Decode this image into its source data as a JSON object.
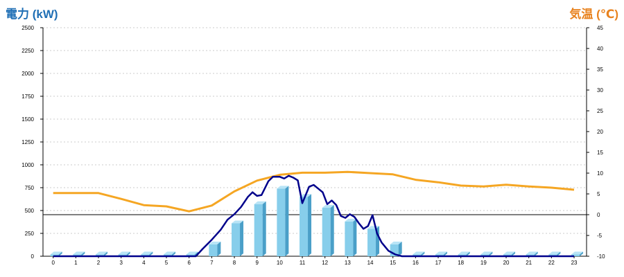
{
  "chart_data": {
    "type": "bar+line",
    "left_title": "電力 (kW)",
    "right_title": "気温 (℃)",
    "categories": [
      "0",
      "1",
      "2",
      "3",
      "4",
      "5",
      "6",
      "7",
      "8",
      "9",
      "10",
      "11",
      "12",
      "13",
      "14",
      "15",
      "16",
      "17",
      "18",
      "19",
      "20",
      "21",
      "22",
      "23"
    ],
    "left_axis": {
      "ticks": [
        "0",
        "250",
        "500",
        "750",
        "1000",
        "1250",
        "1500",
        "1750",
        "2000",
        "2250",
        "2500"
      ],
      "ylim": [
        0,
        2500
      ]
    },
    "right_axis": {
      "ticks": [
        "-10",
        "-5",
        "0",
        "5",
        "10",
        "15",
        "20",
        "25",
        "30",
        "35",
        "40",
        "45"
      ],
      "ylim": [
        -10,
        45
      ]
    },
    "bars": [
      20,
      20,
      20,
      20,
      20,
      20,
      20,
      130,
      360,
      570,
      740,
      650,
      530,
      380,
      300,
      130,
      20,
      20,
      20,
      20,
      20,
      20,
      20,
      20
    ],
    "power_line": [
      [
        0,
        0
      ],
      [
        1,
        0
      ],
      [
        2,
        0
      ],
      [
        3,
        0
      ],
      [
        4,
        0
      ],
      [
        5,
        0
      ],
      [
        6,
        0
      ],
      [
        6.3,
        0
      ],
      [
        6.6,
        80
      ],
      [
        7,
        180
      ],
      [
        7.4,
        290
      ],
      [
        7.7,
        400
      ],
      [
        8,
        460
      ],
      [
        8.3,
        540
      ],
      [
        8.6,
        650
      ],
      [
        8.8,
        700
      ],
      [
        9.0,
        660
      ],
      [
        9.2,
        670
      ],
      [
        9.5,
        820
      ],
      [
        9.7,
        870
      ],
      [
        10,
        870
      ],
      [
        10.2,
        850
      ],
      [
        10.4,
        880
      ],
      [
        10.6,
        860
      ],
      [
        10.8,
        830
      ],
      [
        11.0,
        580
      ],
      [
        11.1,
        640
      ],
      [
        11.3,
        760
      ],
      [
        11.5,
        780
      ],
      [
        11.7,
        740
      ],
      [
        11.9,
        700
      ],
      [
        12.1,
        570
      ],
      [
        12.3,
        610
      ],
      [
        12.5,
        560
      ],
      [
        12.7,
        440
      ],
      [
        12.9,
        420
      ],
      [
        13.1,
        460
      ],
      [
        13.3,
        430
      ],
      [
        13.5,
        360
      ],
      [
        13.7,
        300
      ],
      [
        13.9,
        330
      ],
      [
        14.1,
        450
      ],
      [
        14.3,
        250
      ],
      [
        14.5,
        150
      ],
      [
        14.8,
        60
      ],
      [
        15.1,
        20
      ],
      [
        15.4,
        0
      ],
      [
        16,
        0
      ],
      [
        17,
        0
      ],
      [
        18,
        0
      ],
      [
        19,
        0
      ],
      [
        20,
        0
      ],
      [
        21,
        0
      ],
      [
        22,
        0
      ],
      [
        23,
        0
      ]
    ],
    "temperature_line": [
      [
        0,
        5.2
      ],
      [
        1,
        5.2
      ],
      [
        2,
        5.2
      ],
      [
        3,
        3.8
      ],
      [
        4,
        2.3
      ],
      [
        5,
        2.0
      ],
      [
        6,
        0.8
      ],
      [
        7,
        2.2
      ],
      [
        8,
        5.6
      ],
      [
        9,
        8.2
      ],
      [
        10,
        9.6
      ],
      [
        11,
        10.1
      ],
      [
        12,
        10.1
      ],
      [
        13,
        10.3
      ],
      [
        14,
        10.0
      ],
      [
        15,
        9.7
      ],
      [
        16,
        8.4
      ],
      [
        17,
        7.8
      ],
      [
        18,
        7.0
      ],
      [
        19,
        6.8
      ],
      [
        20,
        7.2
      ],
      [
        21,
        6.8
      ],
      [
        22,
        6.5
      ],
      [
        23,
        6.0
      ]
    ],
    "colors": {
      "bar": "#87ceeb",
      "bar_side": "#4a9fc8",
      "bar_top": "#b8e4f6",
      "power": "#00008b",
      "temperature": "#f5a623",
      "left_title": "#1f6fb5",
      "right_title": "#e8821e"
    },
    "grid": true
  }
}
